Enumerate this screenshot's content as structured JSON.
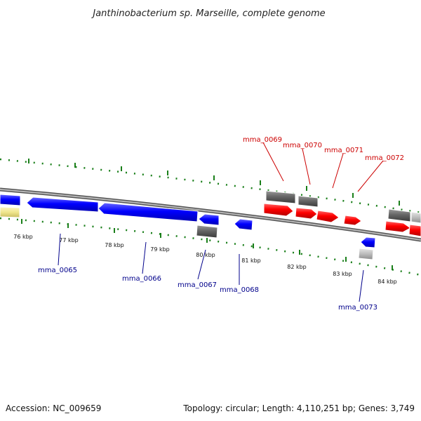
{
  "title": "Janthinobacterium sp. Marseille, complete genome",
  "footer": {
    "accession": "Accession: NC_009659",
    "summary": "Topology: circular; Length: 4,110,251 bp; Genes: 3,749"
  },
  "scale_labels": [
    "76 kbp",
    "77 kbp",
    "78 kbp",
    "79 kbp",
    "80 kbp",
    "81 kbp",
    "82 kbp",
    "83 kbp",
    "84 kbp"
  ],
  "gene_labels": {
    "top": [
      "mma_0069",
      "mma_0070",
      "mma_0071",
      "mma_0072"
    ],
    "bottom": [
      "mma_0065",
      "mma_0066",
      "mma_0067",
      "mma_0068",
      "mma_0073"
    ]
  },
  "colors": {
    "forward_strand": "#ff0000",
    "reverse_strand": "#0000ff",
    "backbone": "#888888",
    "ticks": "#1a7f1a",
    "grey_feature": "#666666",
    "light_grey_feature": "#bbbbbb",
    "yellow_feature": "#f0e68c",
    "top_label_color": "#cc0000",
    "bottom_label_color": "#00008b"
  }
}
